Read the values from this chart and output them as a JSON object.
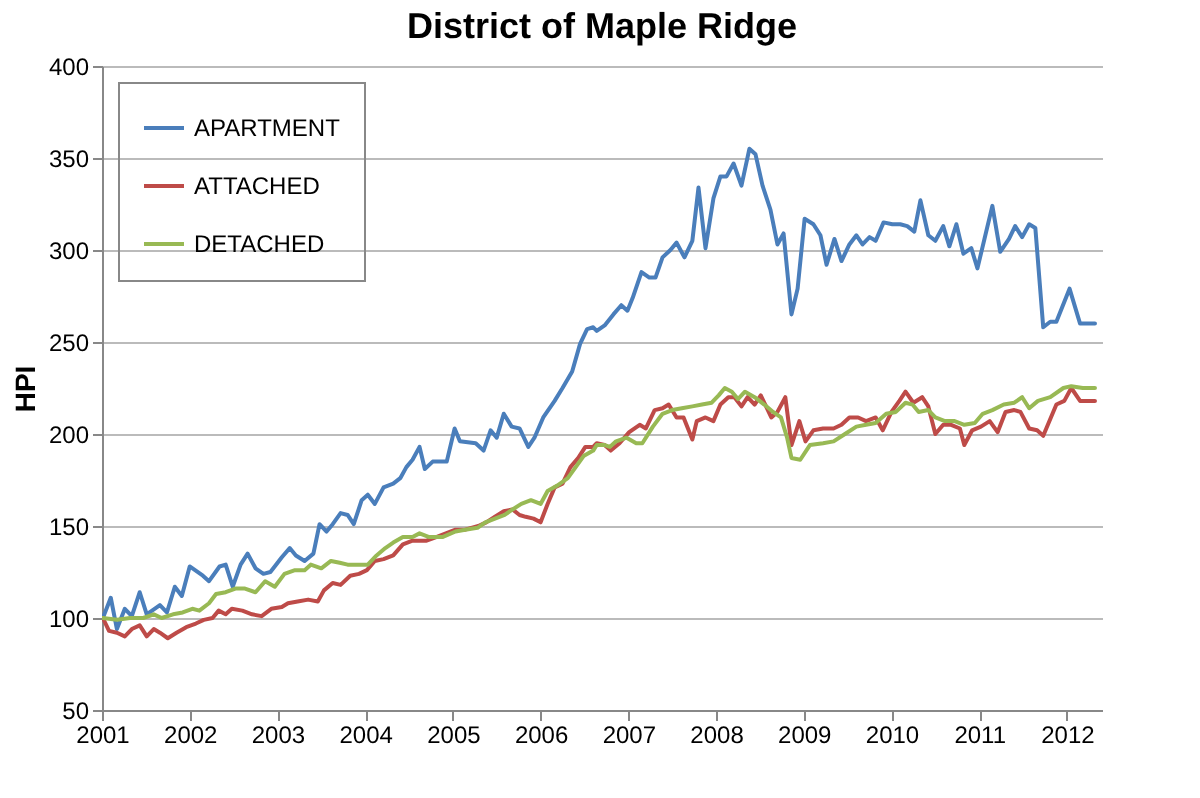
{
  "chart_data": {
    "type": "line",
    "title": "District of Maple Ridge",
    "ylabel": "HPI",
    "xlim": [
      2001,
      2012.4
    ],
    "xticks": [
      2001,
      2002,
      2003,
      2004,
      2005,
      2006,
      2007,
      2008,
      2009,
      2010,
      2011,
      2012
    ],
    "ylim": [
      50,
      400
    ],
    "yticks": [
      50,
      100,
      150,
      200,
      250,
      300,
      350,
      400
    ],
    "grid": "y",
    "legend": "top left",
    "line_style": "solid",
    "series": [
      {
        "name": "APARTMENT",
        "color": "#4a7ebb",
        "x": [
          2001.01,
          2001.1,
          2001.17,
          2001.26,
          2001.34,
          2001.43,
          2001.51,
          2001.66,
          2001.74,
          2001.83,
          2001.91,
          2002.0,
          2002.15,
          2002.22,
          2002.34,
          2002.41,
          2002.49,
          2002.58,
          2002.66,
          2002.75,
          2002.84,
          2002.92,
          2003.05,
          2003.14,
          2003.21,
          2003.31,
          2003.41,
          2003.48,
          2003.56,
          2003.63,
          2003.72,
          2003.8,
          2003.87,
          2003.96,
          2004.03,
          2004.11,
          2004.21,
          2004.32,
          2004.4,
          2004.47,
          2004.54,
          2004.62,
          2004.68,
          2004.77,
          2004.93,
          2005.02,
          2005.08,
          2005.26,
          2005.35,
          2005.43,
          2005.5,
          2005.58,
          2005.67,
          2005.76,
          2005.86,
          2005.93,
          2006.03,
          2006.16,
          2006.25,
          2006.36,
          2006.45,
          2006.53,
          2006.6,
          2006.64,
          2006.73,
          2006.83,
          2006.92,
          2006.99,
          2007.05,
          2007.15,
          2007.24,
          2007.31,
          2007.39,
          2007.48,
          2007.55,
          2007.64,
          2007.73,
          2007.8,
          2007.88,
          2007.97,
          2008.05,
          2008.12,
          2008.2,
          2008.29,
          2008.38,
          2008.45,
          2008.53,
          2008.62,
          2008.7,
          2008.77,
          2008.86,
          2008.93,
          2009.01,
          2009.11,
          2009.19,
          2009.26,
          2009.35,
          2009.43,
          2009.52,
          2009.6,
          2009.67,
          2009.75,
          2009.82,
          2009.91,
          2010.01,
          2010.1,
          2010.18,
          2010.26,
          2010.33,
          2010.42,
          2010.5,
          2010.59,
          2010.66,
          2010.74,
          2010.82,
          2010.91,
          2010.98,
          2011.06,
          2011.15,
          2011.24,
          2011.34,
          2011.41,
          2011.49,
          2011.57,
          2011.64,
          2011.73,
          2011.81,
          2011.88,
          2012.03,
          2012.15,
          2012.32
        ],
        "values": [
          100,
          111,
          94,
          105,
          101,
          114,
          102,
          107,
          103,
          117,
          112,
          128,
          123,
          120,
          128,
          129,
          117,
          129,
          135,
          127,
          124,
          125,
          133,
          138,
          134,
          131,
          135,
          151,
          147,
          151,
          157,
          156,
          151,
          164,
          167,
          162,
          171,
          173,
          176,
          182,
          186,
          193,
          181,
          185,
          185,
          203,
          196,
          195,
          191,
          202,
          198,
          211,
          204,
          203,
          193,
          198,
          209,
          218,
          225,
          234,
          249,
          257,
          258,
          256,
          259,
          265,
          270,
          267,
          274,
          288,
          285,
          285,
          296,
          300,
          304,
          296,
          305,
          334,
          301,
          328,
          340,
          340,
          347,
          335,
          355,
          352,
          335,
          322,
          303,
          309,
          265,
          279,
          317,
          314,
          308,
          292,
          306,
          294,
          303,
          308,
          303,
          307,
          305,
          315,
          314,
          314,
          313,
          310,
          327,
          308,
          305,
          313,
          302,
          314,
          298,
          301,
          290,
          306,
          324,
          299,
          306,
          313,
          307,
          314,
          312,
          258,
          261,
          261,
          279,
          260,
          260
        ]
      },
      {
        "name": "ATTACHED",
        "color": "#be4b48",
        "x": [
          2001.01,
          2001.08,
          2001.17,
          2001.26,
          2001.34,
          2001.43,
          2001.51,
          2001.59,
          2001.66,
          2001.75,
          2001.85,
          2001.96,
          2002.07,
          2002.16,
          2002.26,
          2002.33,
          2002.41,
          2002.48,
          2002.6,
          2002.71,
          2002.82,
          2002.93,
          2003.05,
          2003.12,
          2003.23,
          2003.35,
          2003.46,
          2003.53,
          2003.63,
          2003.72,
          2003.83,
          2003.93,
          2004.02,
          2004.11,
          2004.21,
          2004.32,
          2004.43,
          2004.54,
          2004.7,
          2004.81,
          2004.92,
          2005.03,
          2005.14,
          2005.29,
          2005.38,
          2005.48,
          2005.58,
          2005.68,
          2005.76,
          2005.83,
          2005.92,
          2006.0,
          2006.08,
          2006.16,
          2006.25,
          2006.34,
          2006.43,
          2006.51,
          2006.6,
          2006.64,
          2006.73,
          2006.8,
          2006.9,
          2007.01,
          2007.13,
          2007.2,
          2007.3,
          2007.39,
          2007.46,
          2007.55,
          2007.63,
          2007.73,
          2007.78,
          2007.88,
          2007.97,
          2008.05,
          2008.14,
          2008.21,
          2008.29,
          2008.36,
          2008.44,
          2008.51,
          2008.63,
          2008.7,
          2008.79,
          2008.86,
          2008.95,
          2009.02,
          2009.11,
          2009.22,
          2009.34,
          2009.43,
          2009.52,
          2009.62,
          2009.71,
          2009.82,
          2009.9,
          2010.0,
          2010.09,
          2010.16,
          2010.25,
          2010.35,
          2010.42,
          2010.5,
          2010.59,
          2010.68,
          2010.78,
          2010.83,
          2010.92,
          2011.02,
          2011.12,
          2011.21,
          2011.3,
          2011.4,
          2011.47,
          2011.57,
          2011.66,
          2011.73,
          2011.88,
          2011.97,
          2012.05,
          2012.15,
          2012.32
        ],
        "values": [
          100,
          93,
          92,
          90,
          94,
          96,
          90,
          94,
          92,
          89,
          92,
          95,
          97,
          99,
          100,
          104,
          102,
          105,
          104,
          102,
          101,
          105,
          106,
          108,
          109,
          110,
          109,
          115,
          119,
          118,
          123,
          124,
          126,
          131,
          132,
          134,
          140,
          142,
          142,
          144,
          146,
          148,
          148,
          150,
          152,
          155,
          158,
          159,
          156,
          155,
          154,
          152,
          162,
          171,
          173,
          182,
          187,
          193,
          193,
          195,
          194,
          191,
          195,
          201,
          205,
          203,
          213,
          214,
          216,
          209,
          209,
          197,
          207,
          209,
          207,
          216,
          220,
          220,
          215,
          220,
          216,
          221,
          209,
          212,
          220,
          194,
          207,
          196,
          202,
          203,
          203,
          205,
          209,
          209,
          207,
          209,
          202,
          212,
          218,
          223,
          217,
          220,
          215,
          200,
          205,
          205,
          203,
          194,
          202,
          204,
          207,
          201,
          212,
          213,
          212,
          203,
          202,
          199,
          216,
          218,
          225,
          218,
          218
        ]
      },
      {
        "name": "DETACHED",
        "color": "#98b954",
        "x": [
          2001.01,
          2001.17,
          2001.32,
          2001.47,
          2001.59,
          2001.68,
          2001.81,
          2001.92,
          2002.03,
          2002.11,
          2002.22,
          2002.3,
          2002.41,
          2002.52,
          2002.63,
          2002.75,
          2002.86,
          2002.97,
          2003.08,
          2003.2,
          2003.31,
          2003.38,
          2003.5,
          2003.61,
          2003.71,
          2003.8,
          2003.95,
          2004.03,
          2004.13,
          2004.23,
          2004.32,
          2004.43,
          2004.54,
          2004.62,
          2004.73,
          2004.88,
          2005.03,
          2005.14,
          2005.28,
          2005.37,
          2005.48,
          2005.59,
          2005.68,
          2005.78,
          2005.89,
          2006.0,
          2006.08,
          2006.19,
          2006.31,
          2006.4,
          2006.49,
          2006.6,
          2006.64,
          2006.73,
          2006.79,
          2006.86,
          2006.98,
          2007.09,
          2007.16,
          2007.28,
          2007.39,
          2007.5,
          2007.61,
          2007.73,
          2007.84,
          2007.95,
          2008.03,
          2008.1,
          2008.18,
          2008.25,
          2008.33,
          2008.44,
          2008.55,
          2008.65,
          2008.74,
          2008.81,
          2008.86,
          2008.96,
          2009.07,
          2009.22,
          2009.34,
          2009.47,
          2009.6,
          2009.71,
          2009.82,
          2009.94,
          2010.05,
          2010.16,
          2010.24,
          2010.31,
          2010.42,
          2010.5,
          2010.61,
          2010.72,
          2010.83,
          2010.95,
          2011.04,
          2011.15,
          2011.28,
          2011.4,
          2011.49,
          2011.57,
          2011.67,
          2011.81,
          2011.96,
          2012.05,
          2012.18,
          2012.32
        ],
        "values": [
          100,
          99,
          100,
          100,
          102,
          100,
          102,
          103,
          105,
          104,
          108,
          113,
          114,
          116,
          116,
          114,
          120,
          117,
          124,
          126,
          126,
          129,
          127,
          131,
          130,
          129,
          129,
          129,
          134,
          138,
          141,
          144,
          144,
          146,
          144,
          144,
          147,
          148,
          149,
          152,
          154,
          156,
          159,
          162,
          164,
          162,
          169,
          172,
          176,
          182,
          188,
          191,
          194,
          194,
          193,
          196,
          198,
          195,
          195,
          204,
          211,
          213,
          214,
          215,
          216,
          217,
          221,
          225,
          223,
          219,
          223,
          220,
          216,
          212,
          209,
          198,
          187,
          186,
          194,
          195,
          196,
          200,
          204,
          205,
          206,
          211,
          212,
          217,
          216,
          212,
          213,
          209,
          207,
          207,
          205,
          206,
          211,
          213,
          216,
          217,
          220,
          214,
          218,
          220,
          225,
          226,
          225,
          225
        ]
      }
    ]
  }
}
